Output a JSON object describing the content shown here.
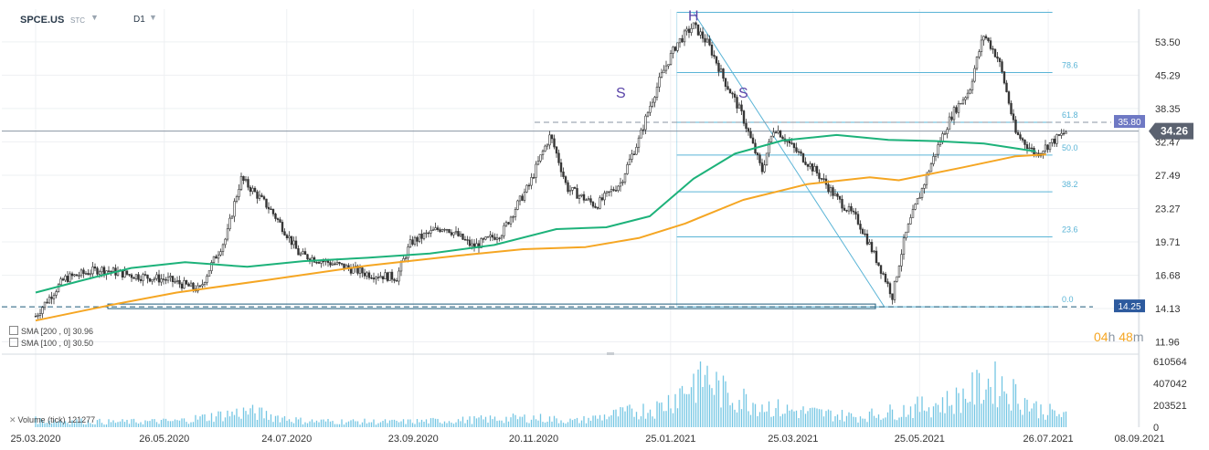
{
  "header": {
    "symbol": "SPCE.US",
    "market": "STC",
    "timeframe": "D1"
  },
  "indicators": {
    "sma200": "SMA [200 , 0] 30.96",
    "sma100": "SMA [100 , 0] 30.50",
    "volume": "Volume (tick) 121277"
  },
  "countdown": {
    "hours": "04",
    "h": "h",
    "minutes": "48",
    "m": "m"
  },
  "colors": {
    "sma200": "#1db27a",
    "sma100": "#f5a623",
    "fib": "#5ab4d6",
    "candle": "#333333",
    "volume": "#74c6e3",
    "price_badge": "#5b6270",
    "level_badge": "#6f79c4",
    "low_badge": "#2d5a9e"
  },
  "chart_data": {
    "type": "candlestick",
    "x_ticks": [
      "25.03.2020",
      "26.05.2020",
      "24.07.2020",
      "23.09.2020",
      "20.11.2020",
      "25.01.2021",
      "25.03.2021",
      "25.05.2021",
      "26.07.2021",
      "08.09.2021"
    ],
    "y_ticks": [
      11.96,
      14.13,
      16.68,
      19.71,
      23.27,
      27.49,
      32.47,
      38.35,
      45.29,
      53.5
    ],
    "volume_ticks": [
      0,
      203521,
      407042,
      610564
    ],
    "ylim": [
      11.3,
      63.0
    ],
    "volume_max": 610564,
    "current_price": "34.26",
    "level_price": "35.80",
    "low_level": "14.25",
    "fibonacci": {
      "high": 62.0,
      "low": 14.25,
      "levels": [
        {
          "label": "78.6",
          "value": 45.9
        },
        {
          "label": "61.8",
          "value": 35.8
        },
        {
          "label": "50.0",
          "value": 30.4
        },
        {
          "label": "38.2",
          "value": 25.3
        },
        {
          "label": "23.6",
          "value": 20.2
        },
        {
          "label": "0.0",
          "value": 14.25
        }
      ]
    },
    "annotations": [
      {
        "text": "S",
        "date": "2021-01-01",
        "price": 40.5
      },
      {
        "text": "H",
        "date": "2021-02-05",
        "price": 59.5
      },
      {
        "text": "S",
        "date": "2021-03-01",
        "price": 40.5
      }
    ],
    "series": [
      {
        "name": "SMA [200 , 0]",
        "values": [
          [
            "2020-03-25",
            15.3
          ],
          [
            "2020-04-15",
            16.2
          ],
          [
            "2020-05-10",
            17.3
          ],
          [
            "2020-06-05",
            17.8
          ],
          [
            "2020-07-05",
            17.4
          ],
          [
            "2020-08-01",
            17.9
          ],
          [
            "2020-09-01",
            18.2
          ],
          [
            "2020-10-01",
            18.6
          ],
          [
            "2020-11-01",
            19.4
          ],
          [
            "2020-12-01",
            21.0
          ],
          [
            "2020-12-25",
            21.2
          ],
          [
            "2021-01-15",
            22.4
          ],
          [
            "2021-02-05",
            27.0
          ],
          [
            "2021-02-25",
            30.6
          ],
          [
            "2021-03-20",
            32.7
          ],
          [
            "2021-04-15",
            33.6
          ],
          [
            "2021-05-10",
            32.8
          ],
          [
            "2021-06-01",
            32.6
          ],
          [
            "2021-06-25",
            32.2
          ],
          [
            "2021-07-20",
            30.96
          ]
        ]
      },
      {
        "name": "SMA [100 , 0]",
        "values": [
          [
            "2020-03-25",
            13.3
          ],
          [
            "2020-05-01",
            14.4
          ],
          [
            "2020-06-01",
            15.3
          ],
          [
            "2020-07-15",
            16.3
          ],
          [
            "2020-09-01",
            17.5
          ],
          [
            "2020-10-15",
            18.4
          ],
          [
            "2020-11-15",
            19.0
          ],
          [
            "2020-12-15",
            19.2
          ],
          [
            "2021-01-10",
            20.1
          ],
          [
            "2021-02-01",
            21.6
          ],
          [
            "2021-03-01",
            24.3
          ],
          [
            "2021-04-01",
            26.3
          ],
          [
            "2021-05-01",
            27.2
          ],
          [
            "2021-05-15",
            26.8
          ],
          [
            "2021-06-15",
            28.6
          ],
          [
            "2021-07-10",
            30.2
          ],
          [
            "2021-07-25",
            30.5
          ]
        ]
      },
      {
        "name": "Price",
        "values": [
          [
            "2020-03-25",
            13.6
          ],
          [
            "2020-04-08",
            16.4
          ],
          [
            "2020-04-25",
            17.2
          ],
          [
            "2020-05-10",
            16.7
          ],
          [
            "2020-05-28",
            16.3
          ],
          [
            "2020-06-12",
            15.5
          ],
          [
            "2020-06-25",
            20.2
          ],
          [
            "2020-07-02",
            27.0
          ],
          [
            "2020-07-16",
            23.2
          ],
          [
            "2020-07-30",
            18.5
          ],
          [
            "2020-08-15",
            17.7
          ],
          [
            "2020-09-01",
            16.8
          ],
          [
            "2020-09-15",
            16.5
          ],
          [
            "2020-09-22",
            19.7
          ],
          [
            "2020-10-08",
            21.3
          ],
          [
            "2020-10-22",
            19.2
          ],
          [
            "2020-11-05",
            20.7
          ],
          [
            "2020-11-18",
            26.2
          ],
          [
            "2020-11-28",
            33.5
          ],
          [
            "2020-12-06",
            25.8
          ],
          [
            "2020-12-20",
            23.6
          ],
          [
            "2021-01-01",
            26.5
          ],
          [
            "2021-01-10",
            33.0
          ],
          [
            "2021-01-20",
            44.5
          ],
          [
            "2021-01-28",
            53.0
          ],
          [
            "2021-02-05",
            58.0
          ],
          [
            "2021-02-12",
            53.0
          ],
          [
            "2021-02-20",
            44.0
          ],
          [
            "2021-02-28",
            37.5
          ],
          [
            "2021-03-05",
            32.5
          ],
          [
            "2021-03-10",
            28.0
          ],
          [
            "2021-03-16",
            35.0
          ],
          [
            "2021-03-25",
            31.5
          ],
          [
            "2021-04-05",
            28.0
          ],
          [
            "2021-04-15",
            24.5
          ],
          [
            "2021-04-25",
            22.0
          ],
          [
            "2021-05-03",
            18.5
          ],
          [
            "2021-05-12",
            15.0
          ],
          [
            "2021-05-18",
            20.2
          ],
          [
            "2021-05-26",
            25.5
          ],
          [
            "2021-06-02",
            31.0
          ],
          [
            "2021-06-10",
            37.5
          ],
          [
            "2021-06-18",
            42.0
          ],
          [
            "2021-06-25",
            55.5
          ],
          [
            "2021-07-02",
            49.0
          ],
          [
            "2021-07-10",
            34.0
          ],
          [
            "2021-07-20",
            30.5
          ],
          [
            "2021-07-30",
            33.0
          ],
          [
            "2021-08-04",
            34.26
          ]
        ]
      },
      {
        "name": "Volume",
        "values": [
          [
            "2020-03-25",
            80000
          ],
          [
            "2020-05-01",
            60000
          ],
          [
            "2020-06-01",
            70000
          ],
          [
            "2020-07-05",
            180000
          ],
          [
            "2020-08-01",
            70000
          ],
          [
            "2020-09-15",
            60000
          ],
          [
            "2020-10-15",
            80000
          ],
          [
            "2020-11-20",
            110000
          ],
          [
            "2020-12-10",
            70000
          ],
          [
            "2021-01-20",
            230000
          ],
          [
            "2021-02-10",
            610564
          ],
          [
            "2021-02-20",
            380000
          ],
          [
            "2021-03-20",
            200000
          ],
          [
            "2021-04-25",
            120000
          ],
          [
            "2021-05-15",
            190000
          ],
          [
            "2021-06-10",
            300000
          ],
          [
            "2021-06-30",
            540000
          ],
          [
            "2021-07-20",
            220000
          ],
          [
            "2021-08-04",
            121277
          ]
        ]
      }
    ]
  }
}
